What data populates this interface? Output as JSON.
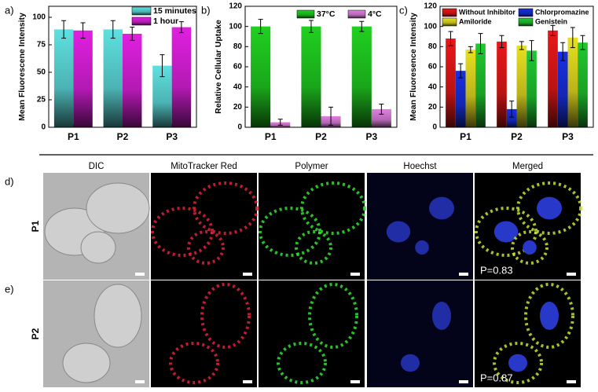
{
  "chart_data": [
    {
      "type": "bar",
      "panel_label": "a)",
      "ylabel": "Mean Fluorescene Intensity",
      "categories": [
        "P1",
        "P2",
        "P3"
      ],
      "ylim": [
        0,
        110
      ],
      "yticks": [
        0,
        25,
        50,
        75,
        100
      ],
      "legend": "upper right",
      "series": [
        {
          "name": "15 minutes",
          "color": "#5fe0e0",
          "values": [
            89,
            89,
            56
          ],
          "errors": [
            8,
            8,
            10
          ]
        },
        {
          "name": "1 hour",
          "color": "#e020e0",
          "values": [
            88,
            85,
            91
          ],
          "errors": [
            7,
            6,
            5
          ]
        }
      ]
    },
    {
      "type": "bar",
      "panel_label": "b)",
      "ylabel": "Relative Cellular Uptake",
      "categories": [
        "P1",
        "P2",
        "P3"
      ],
      "ylim": [
        0,
        120
      ],
      "yticks": [
        0,
        20,
        40,
        60,
        80,
        100,
        120
      ],
      "legend": "upper right",
      "series": [
        {
          "name": "37°C",
          "color": "#20d020",
          "values": [
            100,
            100,
            100
          ],
          "errors": [
            7,
            6,
            5
          ]
        },
        {
          "name": "4°C",
          "color": "#e080e0",
          "values": [
            5,
            11,
            18
          ],
          "errors": [
            3,
            9,
            5
          ]
        }
      ]
    },
    {
      "type": "bar",
      "panel_label": "c)",
      "ylabel": "Mean Fluoresence Intensity",
      "categories": [
        "P1",
        "P2",
        "P3"
      ],
      "ylim": [
        0,
        120
      ],
      "yticks": [
        0,
        20,
        40,
        60,
        80,
        100,
        120
      ],
      "legend": "upper center",
      "series": [
        {
          "name": "Without Inhibitor",
          "color": "#e81818",
          "values": [
            88,
            85,
            96
          ],
          "errors": [
            7,
            6,
            5
          ]
        },
        {
          "name": "Chlorpromazine",
          "color": "#1830e0",
          "values": [
            56,
            18,
            75
          ],
          "errors": [
            7,
            8,
            9
          ]
        },
        {
          "name": "Amiloride",
          "color": "#e8e020",
          "values": [
            77,
            81,
            89
          ],
          "errors": [
            3,
            4,
            10
          ]
        },
        {
          "name": "Genistein",
          "color": "#20c830",
          "values": [
            83,
            76,
            84
          ],
          "errors": [
            10,
            10,
            7
          ]
        }
      ]
    }
  ],
  "microscopy": {
    "column_headers": [
      "DIC",
      "MitoTracker Red",
      "Polymer",
      "Hoechst",
      "Merged"
    ],
    "rows": [
      {
        "panel_label": "d)",
        "name": "P1",
        "annotation": "P=0.83"
      },
      {
        "panel_label": "e)",
        "name": "P2",
        "annotation": "P=0.87"
      }
    ]
  }
}
